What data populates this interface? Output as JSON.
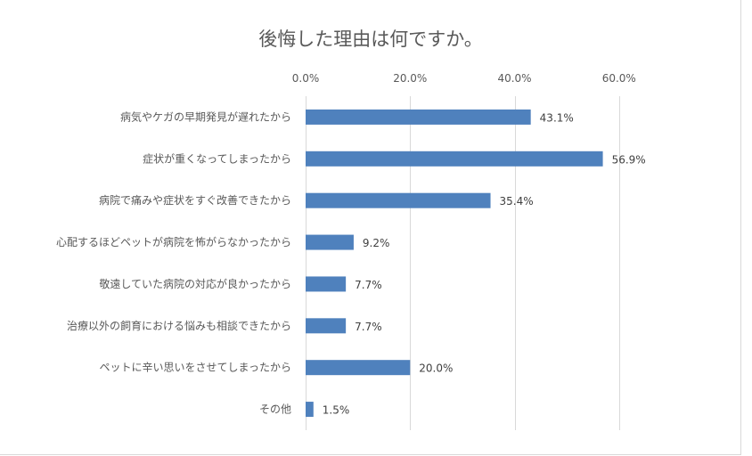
{
  "chart_data": {
    "type": "bar",
    "orientation": "horizontal",
    "title": "後悔した理由は何ですか。",
    "categories": [
      "病気やケガの早期発見が遅れたから",
      "症状が重くなってしまったから",
      "病院で痛みや症状をすぐ改善できたから",
      "心配するほどペットが病院を怖がらなかったから",
      "敬遠していた病院の対応が良かったから",
      "治療以外の飼育における悩みも相談できたから",
      "ペットに辛い思いをさせてしまったから",
      "その他"
    ],
    "values": [
      43.1,
      56.9,
      35.4,
      9.2,
      7.7,
      7.7,
      20.0,
      1.5
    ],
    "data_labels": [
      "43.1%",
      "56.9%",
      "35.4%",
      "9.2%",
      "7.7%",
      "7.7%",
      "20.0%",
      "1.5%"
    ],
    "x_ticks": [
      0,
      20,
      40,
      60
    ],
    "x_tick_labels": [
      "0.0%",
      "20.0%",
      "40.0%",
      "60.0%"
    ],
    "xlim": [
      0,
      80
    ],
    "axis_position": "top",
    "grid": true,
    "legend": "none",
    "bar_color": "#4f81bd"
  }
}
